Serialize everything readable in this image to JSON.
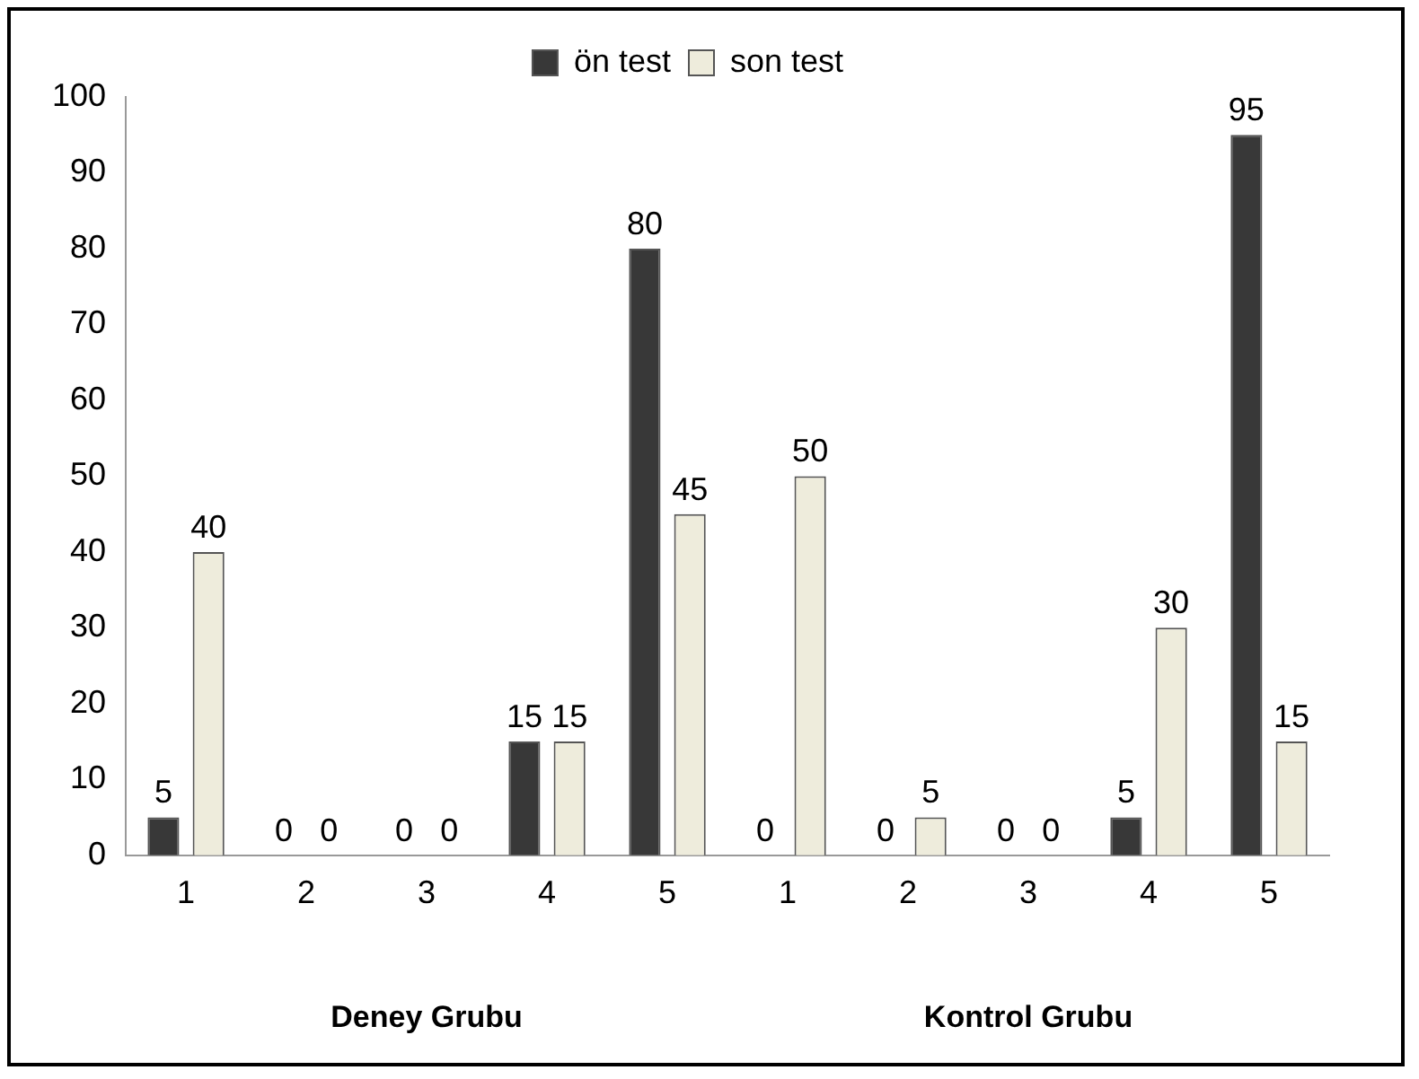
{
  "chart_data": {
    "type": "bar",
    "categories": [
      "1",
      "2",
      "3",
      "4",
      "5",
      "1",
      "2",
      "3",
      "4",
      "5"
    ],
    "series": [
      {
        "name": "ön test",
        "color": "#383838",
        "values": [
          5,
          0,
          0,
          15,
          80,
          0,
          0,
          0,
          5,
          95
        ]
      },
      {
        "name": "son test",
        "color": "#eeecdc",
        "values": [
          40,
          0,
          0,
          15,
          45,
          50,
          5,
          0,
          30,
          15
        ]
      }
    ],
    "ylim": [
      0,
      100
    ],
    "yticks": [
      0,
      10,
      20,
      30,
      40,
      50,
      60,
      70,
      80,
      90,
      100
    ],
    "grid": false,
    "legend": "top",
    "data_labels": true,
    "annotations": [
      "Deney Grubu",
      "Kontrol Grubu"
    ]
  }
}
